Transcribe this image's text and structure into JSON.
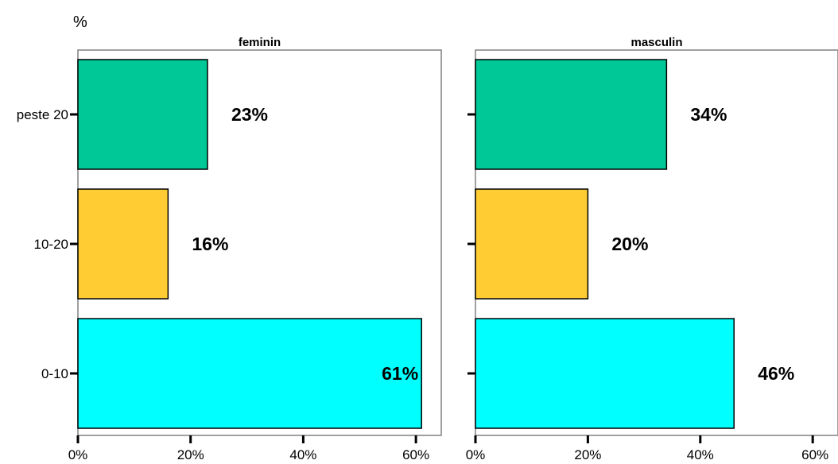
{
  "chart_data": {
    "type": "bar",
    "orientation": "horizontal",
    "unit_label": "%",
    "categories": [
      "peste 20",
      "10-20",
      "0-10"
    ],
    "xlim": [
      0,
      60
    ],
    "x_ticks": [
      "0%",
      "20%",
      "40%",
      "60%"
    ],
    "grid": false,
    "legend": "none",
    "series_colors": [
      "#00C896",
      "#FFCC33",
      "#00FFFF"
    ],
    "panels": [
      {
        "title": "feminin",
        "values": [
          23,
          16,
          61
        ],
        "data_labels": [
          "23%",
          "16%",
          "61%"
        ]
      },
      {
        "title": "masculin",
        "values": [
          34,
          20,
          46
        ],
        "data_labels": [
          "34%",
          "20%",
          "46%"
        ]
      }
    ]
  }
}
